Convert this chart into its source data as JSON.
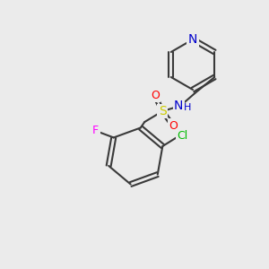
{
  "bg_color": "#ebebeb",
  "bond_color": "#3a3a3a",
  "bond_width": 1.5,
  "atom_colors": {
    "N": "#0000cc",
    "O": "#ff0000",
    "S": "#cccc00",
    "F": "#ff00ff",
    "Cl": "#00bb00",
    "C": "#3a3a3a"
  },
  "font_size": 9,
  "font_size_large": 10
}
